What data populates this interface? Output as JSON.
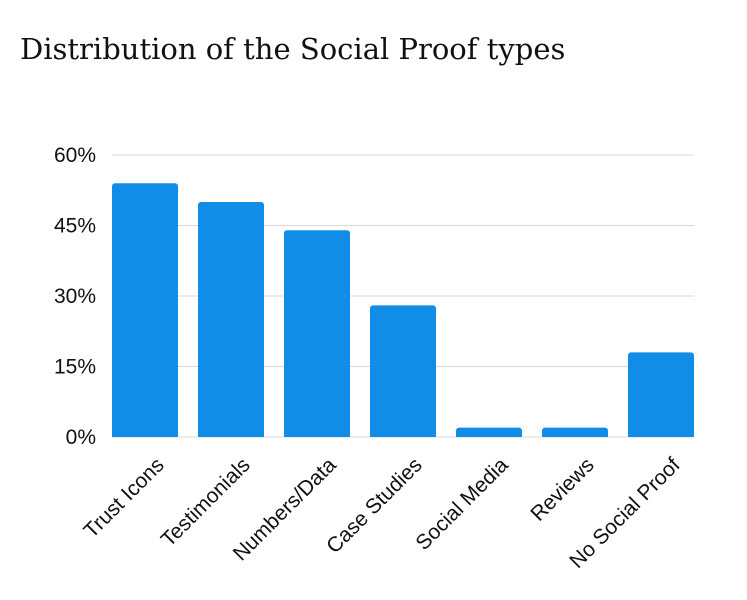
{
  "chart_data": {
    "type": "bar",
    "title": "Distribution of the Social Proof types",
    "xlabel": "",
    "ylabel": "",
    "categories": [
      "Trust Icons",
      "Testimonials",
      "Numbers/Data",
      "Case Studies",
      "Social Media",
      "Reviews",
      "No Social Proof"
    ],
    "values": [
      54,
      50,
      44,
      28,
      2,
      2,
      18
    ],
    "ylim": [
      0,
      60
    ],
    "yticks": [
      0,
      15,
      30,
      45,
      60
    ],
    "ytick_labels": [
      "0%",
      "15%",
      "30%",
      "45%",
      "60%"
    ],
    "grid": true,
    "bar_color": "#118de8"
  }
}
